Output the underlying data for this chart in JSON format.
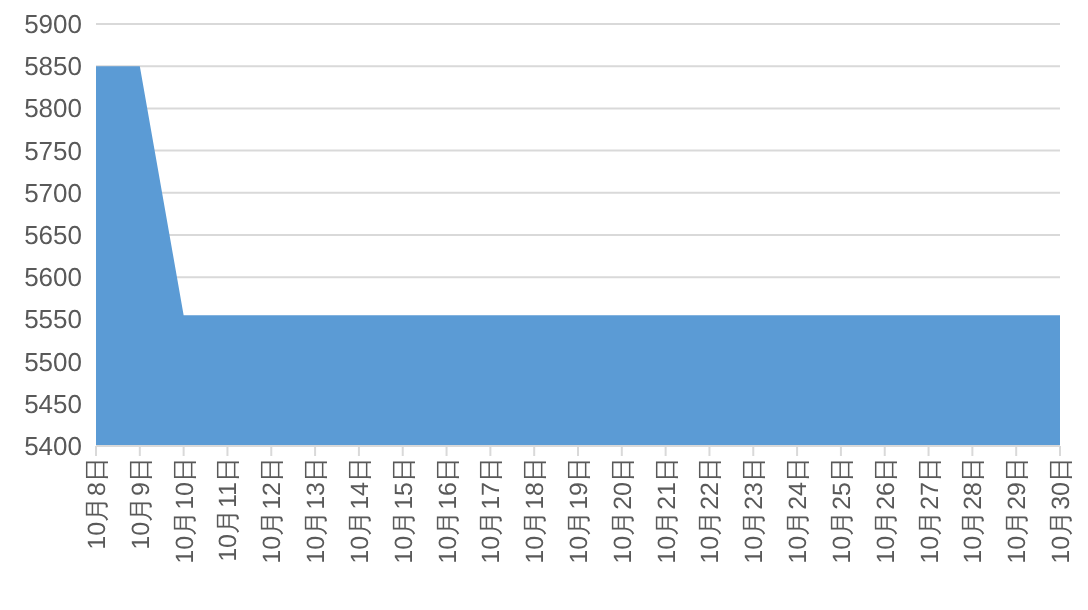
{
  "chart_data": {
    "type": "area",
    "categories": [
      "10月8日",
      "10月9日",
      "10月10日",
      "10月11日",
      "10月12日",
      "10月13日",
      "10月14日",
      "10月15日",
      "10月16日",
      "10月17日",
      "10月18日",
      "10月19日",
      "10月20日",
      "10月21日",
      "10月22日",
      "10月23日",
      "10月24日",
      "10月25日",
      "10月26日",
      "10月27日",
      "10月28日",
      "10月29日",
      "10月30日"
    ],
    "series": [
      {
        "color": "#5b9bd5",
        "values": [
          5850,
          5850,
          5555,
          5555,
          5555,
          5555,
          5555,
          5555,
          5555,
          5555,
          5555,
          5555,
          5555,
          5555,
          5555,
          5555,
          5555,
          5555,
          5555,
          5555,
          5555,
          5555,
          5555
        ]
      }
    ],
    "ylim": [
      5400,
      5900
    ],
    "yticks": [
      5400,
      5450,
      5500,
      5550,
      5600,
      5650,
      5700,
      5750,
      5800,
      5850,
      5900
    ],
    "grid": "y"
  }
}
